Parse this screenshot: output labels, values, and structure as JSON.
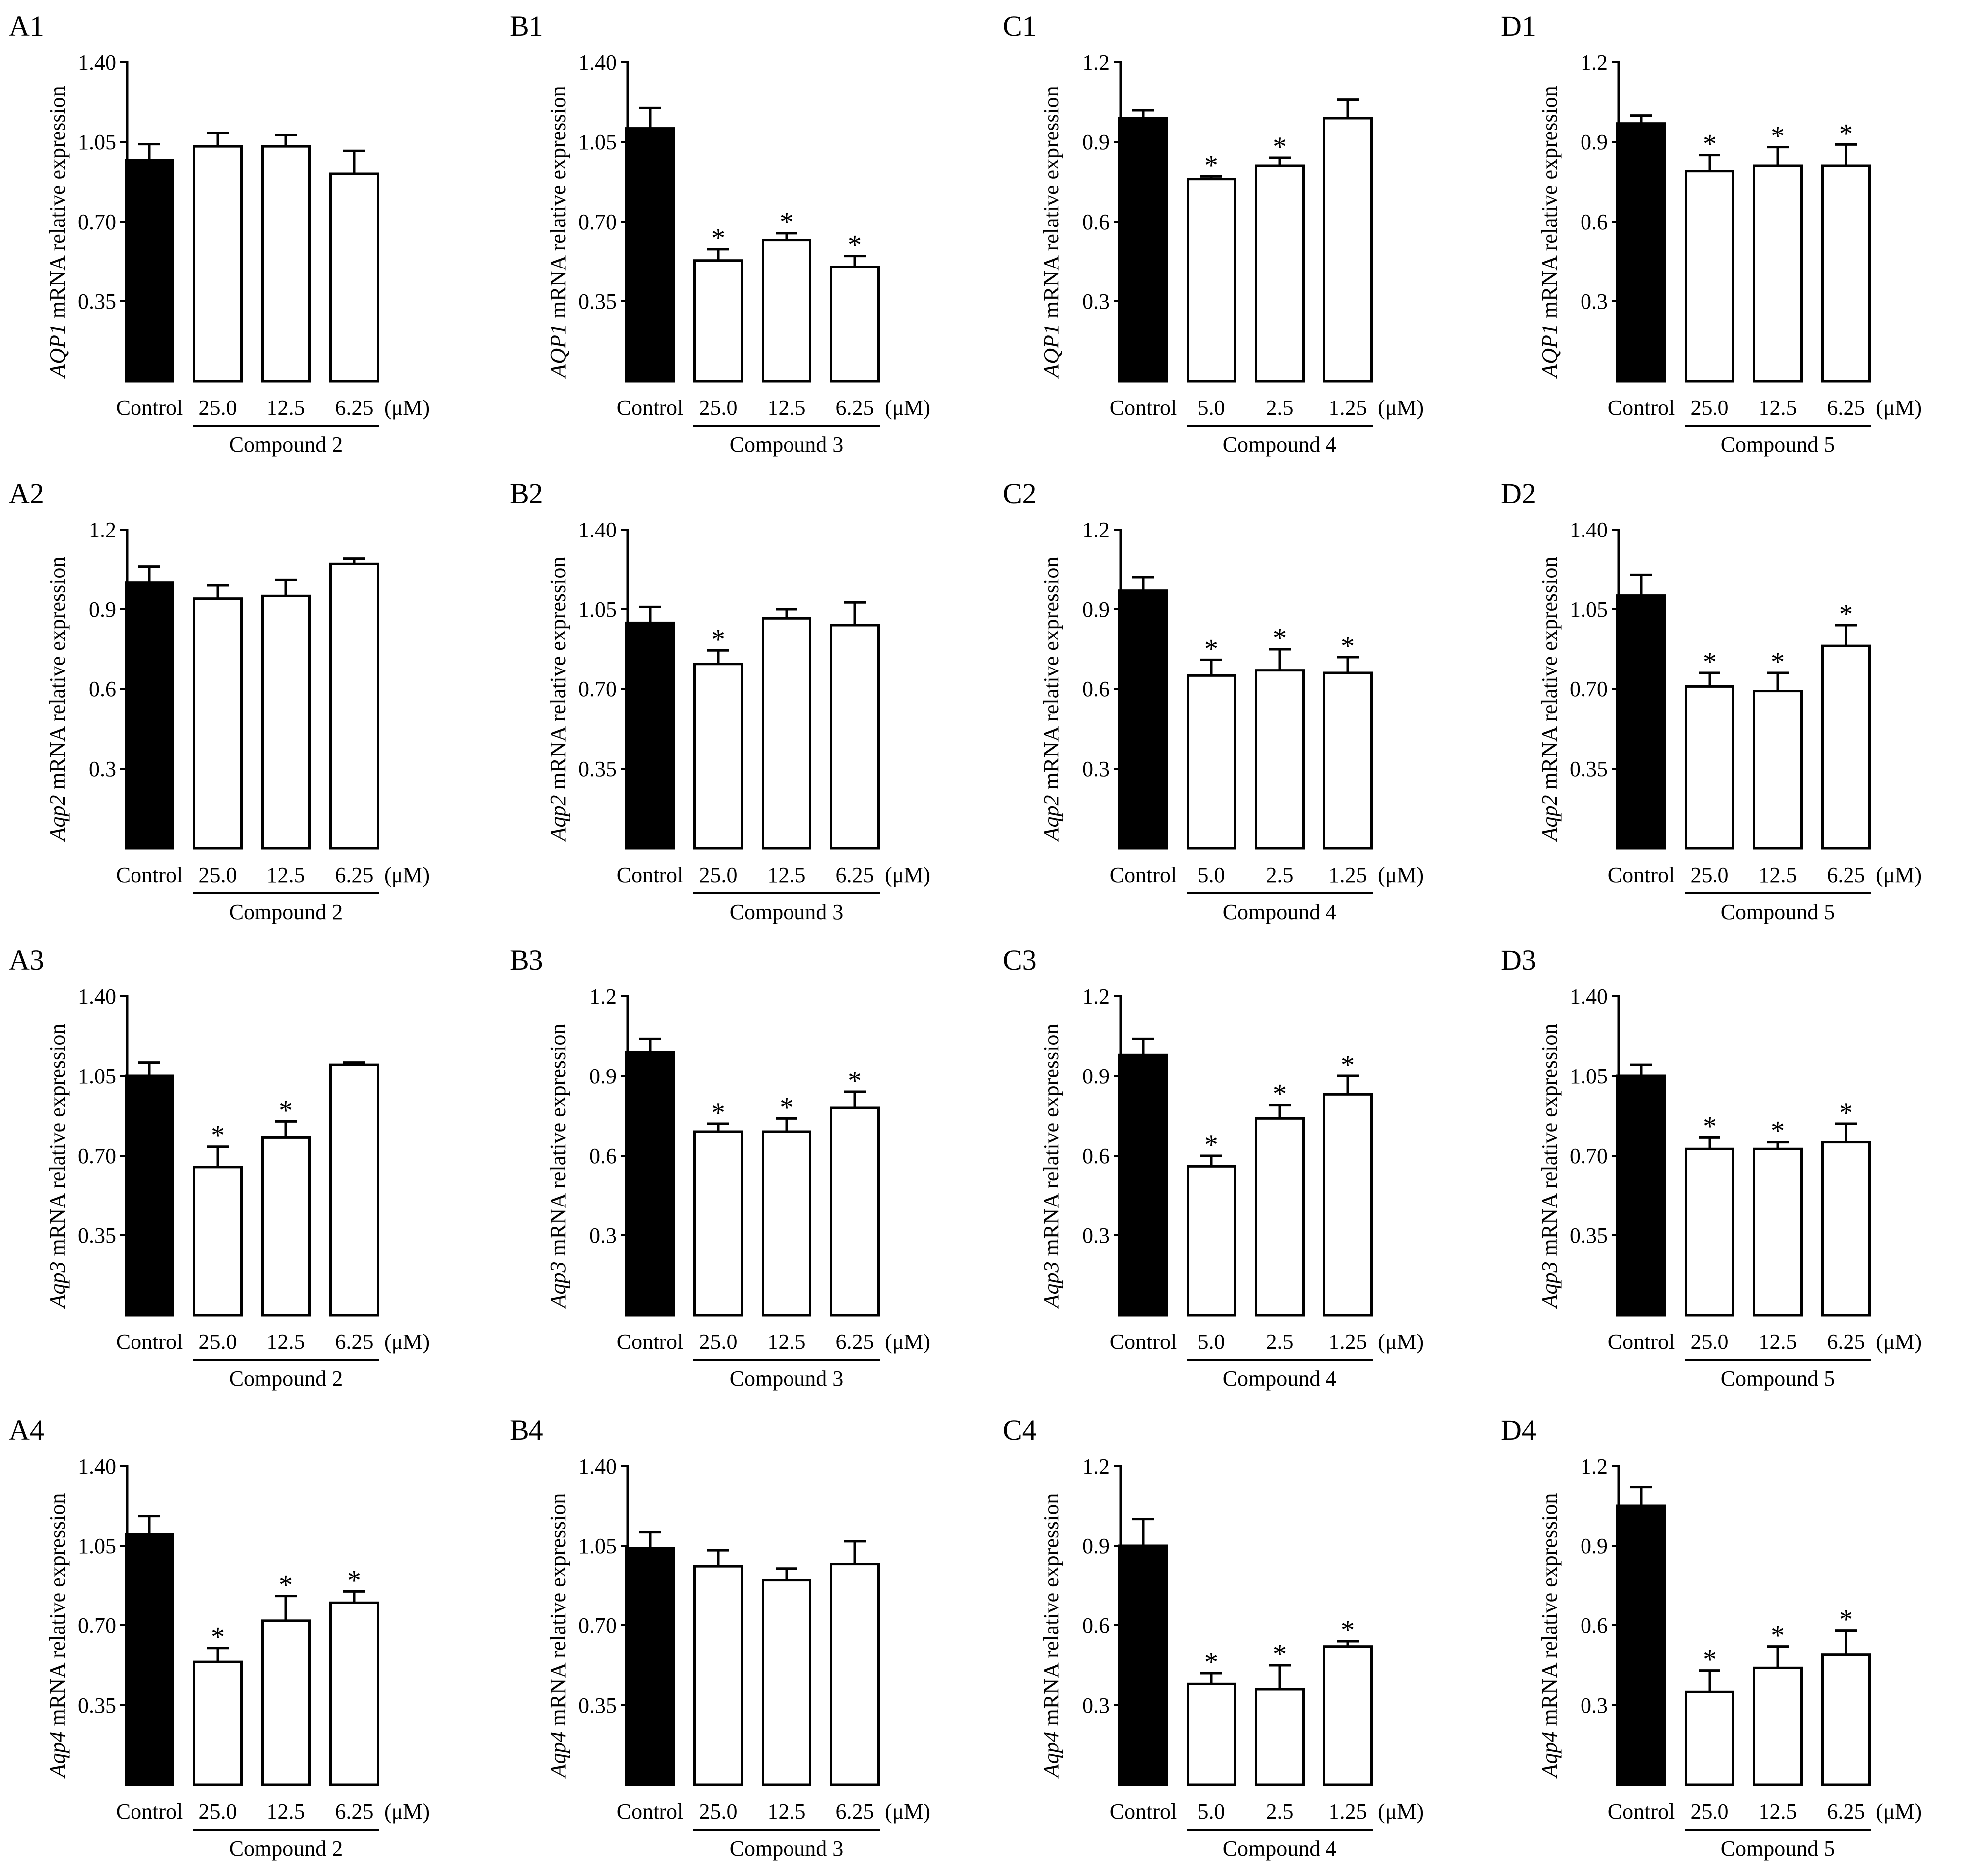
{
  "figure": {
    "unit_label": "(μM)",
    "ylabel_suffix": "mRNA  relative expression",
    "significance_marker": "*"
  },
  "chart_data": [
    {
      "id": "A1",
      "type": "bar",
      "title": "A1",
      "gene": "AQP1",
      "gene_italic": true,
      "ylabel": "AQP1 mRNA  relative expression",
      "ylim": [
        0,
        1.4
      ],
      "yticks": [
        "0.35",
        "0.70",
        "1.05",
        "1.40"
      ],
      "categories": [
        "Control",
        "25.0",
        "12.5",
        "6.25"
      ],
      "values": [
        0.97,
        1.03,
        1.03,
        0.91
      ],
      "errors": [
        0.07,
        0.06,
        0.05,
        0.1
      ],
      "significant": [
        false,
        false,
        false,
        false
      ],
      "group_label": "Compound 2",
      "unit": "(μM)"
    },
    {
      "id": "B1",
      "type": "bar",
      "title": "B1",
      "gene": "AQP1",
      "gene_italic": true,
      "ylabel": "AQP1 mRNA  relative expression",
      "ylim": [
        0,
        1.4
      ],
      "yticks": [
        "0.35",
        "0.70",
        "1.05",
        "1.40"
      ],
      "categories": [
        "Control",
        "25.0",
        "12.5",
        "6.25"
      ],
      "values": [
        1.11,
        0.53,
        0.62,
        0.5
      ],
      "errors": [
        0.09,
        0.05,
        0.03,
        0.05
      ],
      "significant": [
        false,
        true,
        true,
        true
      ],
      "group_label": "Compound 3",
      "unit": "(μM)"
    },
    {
      "id": "C1",
      "type": "bar",
      "title": "C1",
      "gene": "AQP1",
      "gene_italic": true,
      "ylabel": "AQP1 mRNA  relative expression",
      "ylim": [
        0,
        1.2
      ],
      "yticks": [
        "0.3",
        "0.6",
        "0.9",
        "1.2"
      ],
      "categories": [
        "Control",
        "5.0",
        "2.5",
        "1.25"
      ],
      "values": [
        0.99,
        0.76,
        0.81,
        0.99
      ],
      "errors": [
        0.03,
        0.01,
        0.03,
        0.07
      ],
      "significant": [
        false,
        true,
        true,
        false
      ],
      "group_label": "Compound 4",
      "unit": "(μM)"
    },
    {
      "id": "D1",
      "type": "bar",
      "title": "D1",
      "gene": "AQP1",
      "gene_italic": true,
      "ylabel": "AQP1 mRNA  relative expression",
      "ylim": [
        0,
        1.2
      ],
      "yticks": [
        "0.3",
        "0.6",
        "0.9",
        "1.2"
      ],
      "categories": [
        "Control",
        "25.0",
        "12.5",
        "6.25"
      ],
      "values": [
        0.97,
        0.79,
        0.81,
        0.81
      ],
      "errors": [
        0.03,
        0.06,
        0.07,
        0.08
      ],
      "significant": [
        false,
        true,
        true,
        true
      ],
      "group_label": "Compound 5",
      "unit": "(μM)"
    },
    {
      "id": "A2",
      "type": "bar",
      "title": "A2",
      "gene": "Aqp2",
      "gene_italic": true,
      "ylabel": "Aqp2 mRNA  relative expression",
      "ylim": [
        0,
        1.2
      ],
      "yticks": [
        "0.3",
        "0.6",
        "0.9",
        "1.2"
      ],
      "categories": [
        "Control",
        "25.0",
        "12.5",
        "6.25"
      ],
      "values": [
        1.0,
        0.94,
        0.95,
        1.07
      ],
      "errors": [
        0.06,
        0.05,
        0.06,
        0.02
      ],
      "significant": [
        false,
        false,
        false,
        false
      ],
      "group_label": "Compound 2",
      "unit": "(μM)"
    },
    {
      "id": "B2",
      "type": "bar",
      "title": "B2",
      "gene": "Aqp2",
      "gene_italic": true,
      "ylabel": "Aqp2 mRNA  relative expression",
      "ylim": [
        0,
        1.4
      ],
      "yticks": [
        "0.35",
        "0.70",
        "1.05",
        "1.40"
      ],
      "categories": [
        "Control",
        "25.0",
        "12.5",
        "6.25"
      ],
      "values": [
        0.99,
        0.81,
        1.01,
        0.98
      ],
      "errors": [
        0.07,
        0.06,
        0.04,
        0.1
      ],
      "significant": [
        false,
        true,
        false,
        false
      ],
      "group_label": "Compound 3",
      "unit": "(μM)"
    },
    {
      "id": "C2",
      "type": "bar",
      "title": "C2",
      "gene": "Aqp2",
      "gene_italic": true,
      "ylabel": "Aqp2 mRNA  relative expression",
      "ylim": [
        0,
        1.2
      ],
      "yticks": [
        "0.3",
        "0.6",
        "0.9",
        "1.2"
      ],
      "categories": [
        "Control",
        "5.0",
        "2.5",
        "1.25"
      ],
      "values": [
        0.97,
        0.65,
        0.67,
        0.66
      ],
      "errors": [
        0.05,
        0.06,
        0.08,
        0.06
      ],
      "significant": [
        false,
        true,
        true,
        true
      ],
      "group_label": "Compound 4",
      "unit": "(μM)"
    },
    {
      "id": "D2",
      "type": "bar",
      "title": "D2",
      "gene": "Aqp2",
      "gene_italic": true,
      "ylabel": "Aqp2 mRNA  relative expression",
      "ylim": [
        0,
        1.4
      ],
      "yticks": [
        "0.35",
        "0.70",
        "1.05",
        "1.40"
      ],
      "categories": [
        "Control",
        "25.0",
        "12.5",
        "6.25"
      ],
      "values": [
        1.11,
        0.71,
        0.69,
        0.89
      ],
      "errors": [
        0.09,
        0.06,
        0.08,
        0.09
      ],
      "significant": [
        false,
        true,
        true,
        true
      ],
      "group_label": "Compound 5",
      "unit": "(μM)"
    },
    {
      "id": "A3",
      "type": "bar",
      "title": "A3",
      "gene": "Aqp3",
      "gene_italic": true,
      "ylabel": "Aqp3 mRNA  relative expression",
      "ylim": [
        0,
        1.4
      ],
      "yticks": [
        "0.35",
        "0.70",
        "1.05",
        "1.40"
      ],
      "categories": [
        "Control",
        "25.0",
        "12.5",
        "6.25"
      ],
      "values": [
        1.05,
        0.65,
        0.78,
        1.1
      ],
      "errors": [
        0.06,
        0.09,
        0.07,
        0.01
      ],
      "significant": [
        false,
        true,
        true,
        false
      ],
      "group_label": "Compound 2",
      "unit": "(μM)"
    },
    {
      "id": "B3",
      "type": "bar",
      "title": "B3",
      "gene": "Aqp3",
      "gene_italic": true,
      "ylabel": "Aqp3 mRNA  relative expression",
      "ylim": [
        0,
        1.2
      ],
      "yticks": [
        "0.3",
        "0.6",
        "0.9",
        "1.2"
      ],
      "categories": [
        "Control",
        "25.0",
        "12.5",
        "6.25"
      ],
      "values": [
        0.99,
        0.69,
        0.69,
        0.78
      ],
      "errors": [
        0.05,
        0.03,
        0.05,
        0.06
      ],
      "significant": [
        false,
        true,
        true,
        true
      ],
      "group_label": "Compound 3",
      "unit": "(μM)"
    },
    {
      "id": "C3",
      "type": "bar",
      "title": "C3",
      "gene": "Aqp3",
      "gene_italic": true,
      "ylabel": "Aqp3 mRNA  relative expression",
      "ylim": [
        0,
        1.2
      ],
      "yticks": [
        "0.3",
        "0.6",
        "0.9",
        "1.2"
      ],
      "categories": [
        "Control",
        "5.0",
        "2.5",
        "1.25"
      ],
      "values": [
        0.98,
        0.56,
        0.74,
        0.83
      ],
      "errors": [
        0.06,
        0.04,
        0.05,
        0.07
      ],
      "significant": [
        false,
        true,
        true,
        true
      ],
      "group_label": "Compound 4",
      "unit": "(μM)"
    },
    {
      "id": "D3",
      "type": "bar",
      "title": "D3",
      "gene": "Aqp3",
      "gene_italic": true,
      "ylabel": "Aqp3 mRNA  relative expression",
      "ylim": [
        0,
        1.4
      ],
      "yticks": [
        "0.35",
        "0.70",
        "1.05",
        "1.40"
      ],
      "categories": [
        "Control",
        "25.0",
        "12.5",
        "6.25"
      ],
      "values": [
        1.05,
        0.73,
        0.73,
        0.76
      ],
      "errors": [
        0.05,
        0.05,
        0.03,
        0.08
      ],
      "significant": [
        false,
        true,
        true,
        true
      ],
      "group_label": "Compound 5",
      "unit": "(μM)"
    },
    {
      "id": "A4",
      "type": "bar",
      "title": "A4",
      "gene": "Aqp4",
      "gene_italic": true,
      "ylabel": "Aqp4 mRNA  relative expression",
      "ylim": [
        0,
        1.4
      ],
      "yticks": [
        "0.35",
        "0.70",
        "1.05",
        "1.40"
      ],
      "categories": [
        "Control",
        "25.0",
        "12.5",
        "6.25"
      ],
      "values": [
        1.1,
        0.54,
        0.72,
        0.8
      ],
      "errors": [
        0.08,
        0.06,
        0.11,
        0.05
      ],
      "significant": [
        false,
        true,
        true,
        true
      ],
      "group_label": "Compound 2",
      "unit": "(μM)"
    },
    {
      "id": "B4",
      "type": "bar",
      "title": "B4",
      "gene": "Aqp4",
      "gene_italic": true,
      "ylabel": "Aqp4 mRNA  relative expression",
      "ylim": [
        0,
        1.4
      ],
      "yticks": [
        "0.35",
        "0.70",
        "1.05",
        "1.40"
      ],
      "categories": [
        "Control",
        "25.0",
        "12.5",
        "6.25"
      ],
      "values": [
        1.04,
        0.96,
        0.9,
        0.97
      ],
      "errors": [
        0.07,
        0.07,
        0.05,
        0.1
      ],
      "significant": [
        false,
        false,
        false,
        false
      ],
      "group_label": "Compound 3",
      "unit": "(μM)"
    },
    {
      "id": "C4",
      "type": "bar",
      "title": "C4",
      "gene": "Aqp4",
      "gene_italic": true,
      "ylabel": "Aqp4 mRNA  relative expression",
      "ylim": [
        0,
        1.2
      ],
      "yticks": [
        "0.3",
        "0.6",
        "0.9",
        "1.2"
      ],
      "categories": [
        "Control",
        "5.0",
        "2.5",
        "1.25"
      ],
      "values": [
        0.9,
        0.38,
        0.36,
        0.52
      ],
      "errors": [
        0.1,
        0.04,
        0.09,
        0.02
      ],
      "significant": [
        false,
        true,
        true,
        true
      ],
      "group_label": "Compound 4",
      "unit": "(μM)"
    },
    {
      "id": "D4",
      "type": "bar",
      "title": "D4",
      "gene": "Aqp4",
      "gene_italic": true,
      "ylabel": "Aqp4 mRNA  relative expression",
      "ylim": [
        0,
        1.2
      ],
      "yticks": [
        "0.3",
        "0.6",
        "0.9",
        "1.2"
      ],
      "categories": [
        "Control",
        "25.0",
        "12.5",
        "6.25"
      ],
      "values": [
        1.05,
        0.35,
        0.44,
        0.49
      ],
      "errors": [
        0.07,
        0.08,
        0.08,
        0.09
      ],
      "significant": [
        false,
        true,
        true,
        true
      ],
      "group_label": "Compound 5",
      "unit": "(μM)"
    }
  ]
}
